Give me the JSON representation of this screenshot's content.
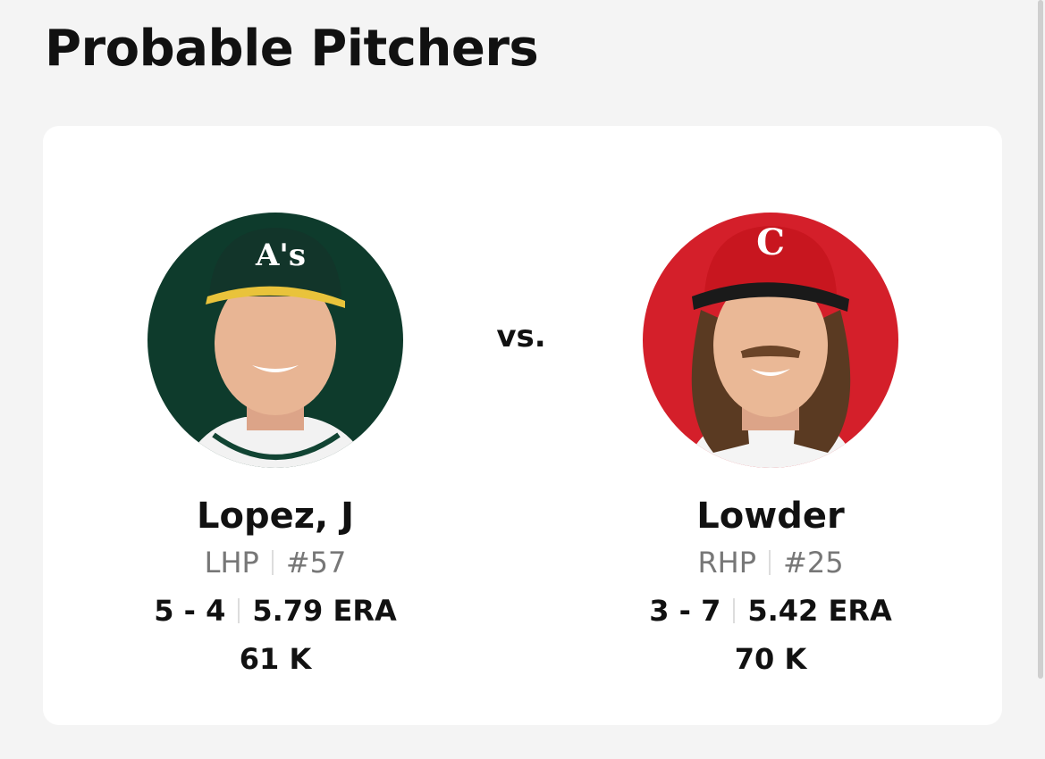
{
  "header": {
    "title": "Probable Pitchers"
  },
  "matchup": {
    "separator": "vs.",
    "pitchers": [
      {
        "name": "Lopez, J",
        "throws": "LHP",
        "number": "#57",
        "record": "5 - 4",
        "era": "5.79 ERA",
        "strikeouts": "61 K"
      },
      {
        "name": "Lowder",
        "throws": "RHP",
        "number": "#25",
        "record": "3 - 7",
        "era": "5.42 ERA",
        "strikeouts": "70 K"
      }
    ]
  }
}
